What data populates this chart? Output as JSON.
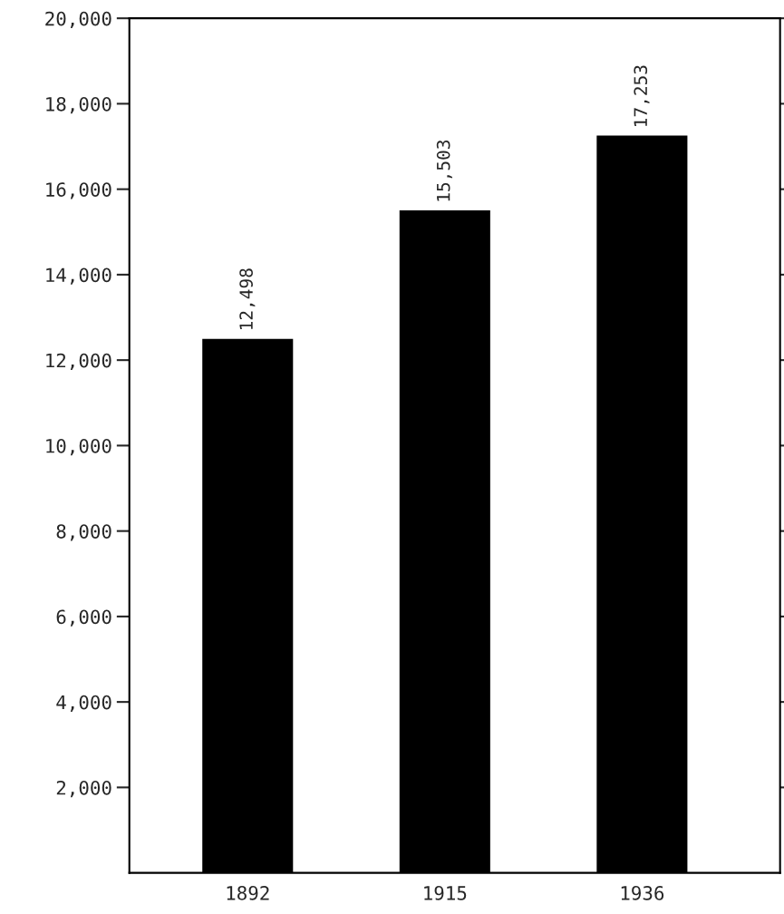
{
  "chart_data": {
    "type": "bar",
    "categories": [
      "1892",
      "1915",
      "1936"
    ],
    "values": [
      12498,
      15503,
      17253
    ],
    "color": "#000000",
    "value_labels": [
      "12,498",
      "15,503",
      "17,253"
    ],
    "ylim": [
      0,
      20000
    ],
    "yticks": [
      {
        "value": 2000,
        "label": "2,000"
      },
      {
        "value": 4000,
        "label": "4,000"
      },
      {
        "value": 6000,
        "label": "6,000"
      },
      {
        "value": 8000,
        "label": "8,000"
      },
      {
        "value": 10000,
        "label": "10,000"
      },
      {
        "value": 12000,
        "label": "12,000"
      },
      {
        "value": 14000,
        "label": "14,000"
      },
      {
        "value": 16000,
        "label": "16,000"
      },
      {
        "value": 18000,
        "label": "18,000"
      },
      {
        "value": 20000,
        "label": "20,000"
      }
    ],
    "grid": false
  }
}
